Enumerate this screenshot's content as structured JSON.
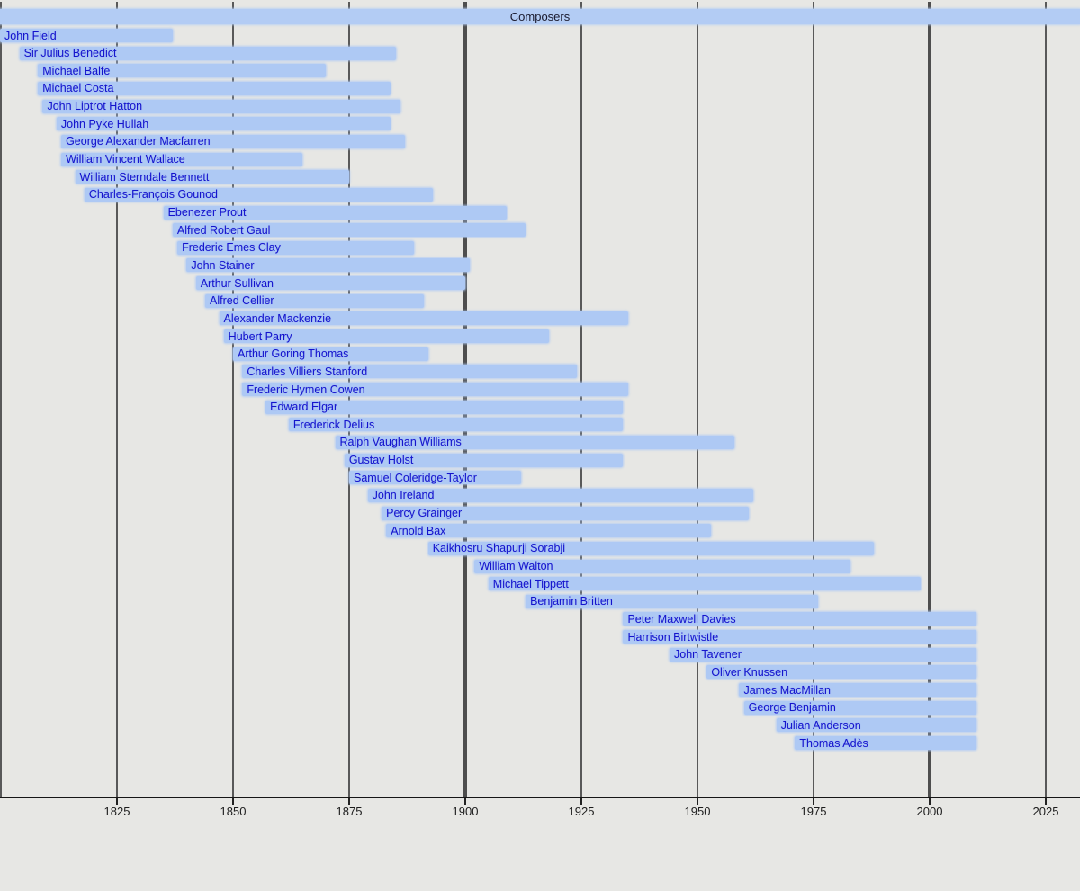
{
  "header": {
    "title": "Composers"
  },
  "colors": {
    "background": "#e7e7e4",
    "bar_fill": "#aec9f4",
    "label_text": "#1414cc",
    "header_text": "#1a1a2e",
    "gridline_minor": "#232323",
    "gridline_major": "#4e4e4e",
    "axis": "#161616"
  },
  "chart_data": {
    "type": "bar",
    "subtype": "horizontal-timeline",
    "title": "Composers",
    "xlabel": "",
    "ylabel": "",
    "xlim": [
      1800,
      2033
    ],
    "x_ticks": [
      1825,
      1850,
      1875,
      1900,
      1925,
      1950,
      1975,
      2000,
      2025
    ],
    "gridline_years": [
      1800,
      1825,
      1850,
      1875,
      1900,
      1925,
      1950,
      1975,
      2000,
      2025
    ],
    "major_gridline_years": [
      1900,
      2000
    ],
    "grid": "vertical",
    "legend": "none",
    "living_bar_end_year": 2010,
    "bars": [
      {
        "label": "John Field",
        "start": 1782,
        "end": 1837
      },
      {
        "label": "Sir Julius Benedict",
        "start": 1804,
        "end": 1885
      },
      {
        "label": "Michael Balfe",
        "start": 1808,
        "end": 1870
      },
      {
        "label": "Michael Costa",
        "start": 1808,
        "end": 1884
      },
      {
        "label": "John Liptrot Hatton",
        "start": 1809,
        "end": 1886
      },
      {
        "label": "John Pyke Hullah",
        "start": 1812,
        "end": 1884
      },
      {
        "label": "George Alexander Macfarren",
        "start": 1813,
        "end": 1887
      },
      {
        "label": "William Vincent Wallace",
        "start": 1813,
        "end": 1865
      },
      {
        "label": "William Sterndale Bennett",
        "start": 1816,
        "end": 1875
      },
      {
        "label": "Charles-François Gounod",
        "start": 1818,
        "end": 1893
      },
      {
        "label": "Ebenezer Prout",
        "start": 1835,
        "end": 1909
      },
      {
        "label": "Alfred Robert Gaul",
        "start": 1837,
        "end": 1913
      },
      {
        "label": "Frederic Emes Clay",
        "start": 1838,
        "end": 1889
      },
      {
        "label": "John Stainer",
        "start": 1840,
        "end": 1901
      },
      {
        "label": "Arthur Sullivan",
        "start": 1842,
        "end": 1900
      },
      {
        "label": "Alfred Cellier",
        "start": 1844,
        "end": 1891
      },
      {
        "label": "Alexander Mackenzie",
        "start": 1847,
        "end": 1935
      },
      {
        "label": "Hubert Parry",
        "start": 1848,
        "end": 1918
      },
      {
        "label": "Arthur Goring Thomas",
        "start": 1850,
        "end": 1892
      },
      {
        "label": "Charles Villiers Stanford",
        "start": 1852,
        "end": 1924
      },
      {
        "label": "Frederic Hymen Cowen",
        "start": 1852,
        "end": 1935
      },
      {
        "label": "Edward Elgar",
        "start": 1857,
        "end": 1934
      },
      {
        "label": "Frederick Delius",
        "start": 1862,
        "end": 1934
      },
      {
        "label": "Ralph Vaughan Williams",
        "start": 1872,
        "end": 1958
      },
      {
        "label": "Gustav Holst",
        "start": 1874,
        "end": 1934
      },
      {
        "label": "Samuel Coleridge-Taylor",
        "start": 1875,
        "end": 1912
      },
      {
        "label": "John Ireland",
        "start": 1879,
        "end": 1962
      },
      {
        "label": "Percy Grainger",
        "start": 1882,
        "end": 1961
      },
      {
        "label": "Arnold Bax",
        "start": 1883,
        "end": 1953
      },
      {
        "label": "Kaikhosru Shapurji Sorabji",
        "start": 1892,
        "end": 1988
      },
      {
        "label": "William Walton",
        "start": 1902,
        "end": 1983
      },
      {
        "label": "Michael Tippett",
        "start": 1905,
        "end": 1998
      },
      {
        "label": "Benjamin Britten",
        "start": 1913,
        "end": 1976
      },
      {
        "label": "Peter Maxwell Davies",
        "start": 1934,
        "end": 2010
      },
      {
        "label": "Harrison Birtwistle",
        "start": 1934,
        "end": 2010
      },
      {
        "label": "John Tavener",
        "start": 1944,
        "end": 2010
      },
      {
        "label": "Oliver Knussen",
        "start": 1952,
        "end": 2010
      },
      {
        "label": "James MacMillan",
        "start": 1959,
        "end": 2010
      },
      {
        "label": "George Benjamin",
        "start": 1960,
        "end": 2010
      },
      {
        "label": "Julian Anderson",
        "start": 1967,
        "end": 2010
      },
      {
        "label": "Thomas Adès",
        "start": 1971,
        "end": 2010
      }
    ]
  }
}
